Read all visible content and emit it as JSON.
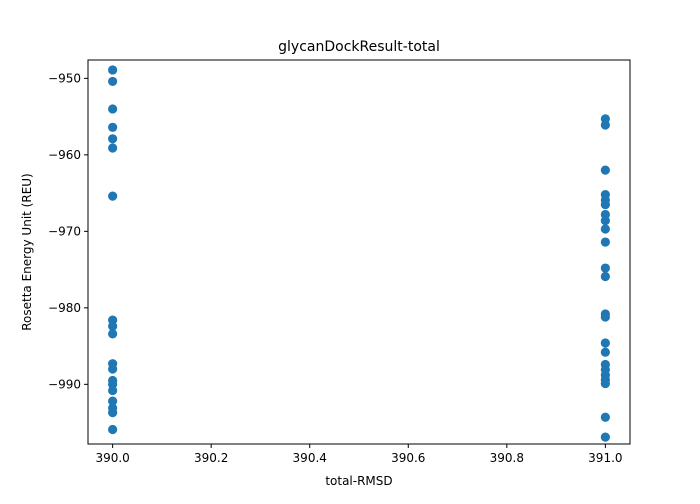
{
  "chart_data": {
    "type": "scatter",
    "title": "glycanDockResult-total",
    "xlabel": "total-RMSD",
    "ylabel": "Rosetta Energy Unit (REU)",
    "xlim": [
      389.95,
      391.05
    ],
    "ylim": [
      -997.8,
      -947.6
    ],
    "xticks": [
      390.0,
      390.2,
      390.4,
      390.6,
      390.8,
      391.0
    ],
    "xtick_labels": [
      "390.0",
      "390.2",
      "390.4",
      "390.6",
      "390.8",
      "391.0"
    ],
    "yticks": [
      -950,
      -960,
      -970,
      -980,
      -990
    ],
    "ytick_labels": [
      "−950",
      "−960",
      "−970",
      "−980",
      "−990"
    ],
    "grid": false,
    "marker_color": "#1f77b4",
    "series": [
      {
        "points": [
          [
            390.0,
            -948.9
          ],
          [
            390.0,
            -950.4
          ],
          [
            390.0,
            -954.0
          ],
          [
            390.0,
            -956.4
          ],
          [
            390.0,
            -957.9
          ],
          [
            390.0,
            -959.1
          ],
          [
            390.0,
            -965.4
          ],
          [
            390.0,
            -981.6
          ],
          [
            390.0,
            -982.4
          ],
          [
            390.0,
            -983.4
          ],
          [
            390.0,
            -987.3
          ],
          [
            390.0,
            -988.0
          ],
          [
            390.0,
            -989.5
          ],
          [
            390.0,
            -990.0
          ],
          [
            390.0,
            -990.8
          ],
          [
            390.0,
            -992.2
          ],
          [
            390.0,
            -993.1
          ],
          [
            390.0,
            -993.7
          ],
          [
            390.0,
            -995.9
          ],
          [
            391.0,
            -955.3
          ],
          [
            391.0,
            -956.1
          ],
          [
            391.0,
            -962.0
          ],
          [
            391.0,
            -965.2
          ],
          [
            391.0,
            -965.9
          ],
          [
            391.0,
            -966.5
          ],
          [
            391.0,
            -967.8
          ],
          [
            391.0,
            -968.6
          ],
          [
            391.0,
            -969.7
          ],
          [
            391.0,
            -971.4
          ],
          [
            391.0,
            -974.8
          ],
          [
            391.0,
            -975.9
          ],
          [
            391.0,
            -980.8
          ],
          [
            391.0,
            -981.2
          ],
          [
            391.0,
            -984.6
          ],
          [
            391.0,
            -985.8
          ],
          [
            391.0,
            -987.4
          ],
          [
            391.0,
            -988.1
          ],
          [
            391.0,
            -988.8
          ],
          [
            391.0,
            -989.4
          ],
          [
            391.0,
            -989.9
          ],
          [
            391.0,
            -994.3
          ],
          [
            391.0,
            -996.9
          ]
        ]
      }
    ]
  }
}
